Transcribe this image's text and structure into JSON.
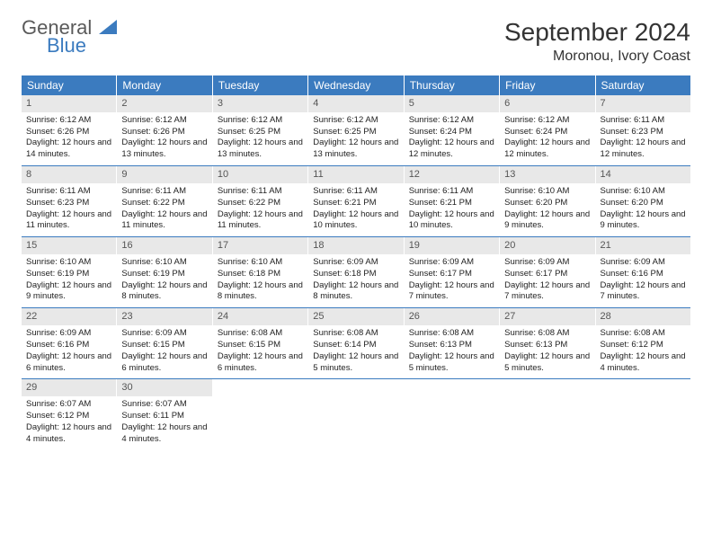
{
  "logo": {
    "word1": "General",
    "word2": "Blue",
    "accent_color": "#3b7bbf",
    "text_color": "#5a5a5a"
  },
  "title": "September 2024",
  "location": "Moronou, Ivory Coast",
  "header_bg": "#3b7bbf",
  "header_fg": "#ffffff",
  "daynum_bg": "#e8e8e8",
  "border_color": "#3b7bbf",
  "day_headers": [
    "Sunday",
    "Monday",
    "Tuesday",
    "Wednesday",
    "Thursday",
    "Friday",
    "Saturday"
  ],
  "weeks": [
    [
      {
        "n": "1",
        "sr": "6:12 AM",
        "ss": "6:26 PM",
        "dl": "12 hours and 14 minutes."
      },
      {
        "n": "2",
        "sr": "6:12 AM",
        "ss": "6:26 PM",
        "dl": "12 hours and 13 minutes."
      },
      {
        "n": "3",
        "sr": "6:12 AM",
        "ss": "6:25 PM",
        "dl": "12 hours and 13 minutes."
      },
      {
        "n": "4",
        "sr": "6:12 AM",
        "ss": "6:25 PM",
        "dl": "12 hours and 13 minutes."
      },
      {
        "n": "5",
        "sr": "6:12 AM",
        "ss": "6:24 PM",
        "dl": "12 hours and 12 minutes."
      },
      {
        "n": "6",
        "sr": "6:12 AM",
        "ss": "6:24 PM",
        "dl": "12 hours and 12 minutes."
      },
      {
        "n": "7",
        "sr": "6:11 AM",
        "ss": "6:23 PM",
        "dl": "12 hours and 12 minutes."
      }
    ],
    [
      {
        "n": "8",
        "sr": "6:11 AM",
        "ss": "6:23 PM",
        "dl": "12 hours and 11 minutes."
      },
      {
        "n": "9",
        "sr": "6:11 AM",
        "ss": "6:22 PM",
        "dl": "12 hours and 11 minutes."
      },
      {
        "n": "10",
        "sr": "6:11 AM",
        "ss": "6:22 PM",
        "dl": "12 hours and 11 minutes."
      },
      {
        "n": "11",
        "sr": "6:11 AM",
        "ss": "6:21 PM",
        "dl": "12 hours and 10 minutes."
      },
      {
        "n": "12",
        "sr": "6:11 AM",
        "ss": "6:21 PM",
        "dl": "12 hours and 10 minutes."
      },
      {
        "n": "13",
        "sr": "6:10 AM",
        "ss": "6:20 PM",
        "dl": "12 hours and 9 minutes."
      },
      {
        "n": "14",
        "sr": "6:10 AM",
        "ss": "6:20 PM",
        "dl": "12 hours and 9 minutes."
      }
    ],
    [
      {
        "n": "15",
        "sr": "6:10 AM",
        "ss": "6:19 PM",
        "dl": "12 hours and 9 minutes."
      },
      {
        "n": "16",
        "sr": "6:10 AM",
        "ss": "6:19 PM",
        "dl": "12 hours and 8 minutes."
      },
      {
        "n": "17",
        "sr": "6:10 AM",
        "ss": "6:18 PM",
        "dl": "12 hours and 8 minutes."
      },
      {
        "n": "18",
        "sr": "6:09 AM",
        "ss": "6:18 PM",
        "dl": "12 hours and 8 minutes."
      },
      {
        "n": "19",
        "sr": "6:09 AM",
        "ss": "6:17 PM",
        "dl": "12 hours and 7 minutes."
      },
      {
        "n": "20",
        "sr": "6:09 AM",
        "ss": "6:17 PM",
        "dl": "12 hours and 7 minutes."
      },
      {
        "n": "21",
        "sr": "6:09 AM",
        "ss": "6:16 PM",
        "dl": "12 hours and 7 minutes."
      }
    ],
    [
      {
        "n": "22",
        "sr": "6:09 AM",
        "ss": "6:16 PM",
        "dl": "12 hours and 6 minutes."
      },
      {
        "n": "23",
        "sr": "6:09 AM",
        "ss": "6:15 PM",
        "dl": "12 hours and 6 minutes."
      },
      {
        "n": "24",
        "sr": "6:08 AM",
        "ss": "6:15 PM",
        "dl": "12 hours and 6 minutes."
      },
      {
        "n": "25",
        "sr": "6:08 AM",
        "ss": "6:14 PM",
        "dl": "12 hours and 5 minutes."
      },
      {
        "n": "26",
        "sr": "6:08 AM",
        "ss": "6:13 PM",
        "dl": "12 hours and 5 minutes."
      },
      {
        "n": "27",
        "sr": "6:08 AM",
        "ss": "6:13 PM",
        "dl": "12 hours and 5 minutes."
      },
      {
        "n": "28",
        "sr": "6:08 AM",
        "ss": "6:12 PM",
        "dl": "12 hours and 4 minutes."
      }
    ],
    [
      {
        "n": "29",
        "sr": "6:07 AM",
        "ss": "6:12 PM",
        "dl": "12 hours and 4 minutes."
      },
      {
        "n": "30",
        "sr": "6:07 AM",
        "ss": "6:11 PM",
        "dl": "12 hours and 4 minutes."
      },
      null,
      null,
      null,
      null,
      null
    ]
  ],
  "labels": {
    "sunrise": "Sunrise:",
    "sunset": "Sunset:",
    "daylight": "Daylight:"
  }
}
